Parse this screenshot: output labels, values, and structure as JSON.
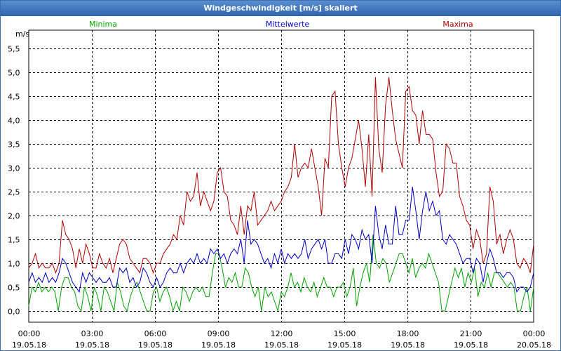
{
  "window": {
    "title": "Windgeschwindigkeit [m/s] skaliert"
  },
  "colors": {
    "minima": "#00a000",
    "mittelwerte": "#0000c0",
    "maxima": "#b00000",
    "grid": "#000000",
    "titlebar": "#3568b5"
  },
  "chart_data": {
    "type": "line",
    "title": "Windgeschwindigkeit [m/s] skaliert",
    "ylabel": "m/s",
    "ylim": [
      -0.2,
      5.9
    ],
    "yticks": [
      "0,0",
      "0,5",
      "1,0",
      "1,5",
      "2,0",
      "2,5",
      "3,0",
      "3,5",
      "4,0",
      "4,5",
      "5,0",
      "5,5"
    ],
    "xlim": [
      "19.05.18 00:00",
      "20.05.18 00:00"
    ],
    "xticks": [
      {
        "time": "00:00",
        "date": "19.05.18"
      },
      {
        "time": "03:00",
        "date": "19.05.18"
      },
      {
        "time": "06:00",
        "date": "19.05.18"
      },
      {
        "time": "09:00",
        "date": "19.05.18"
      },
      {
        "time": "12:00",
        "date": "19.05.18"
      },
      {
        "time": "15:00",
        "date": "19.05.18"
      },
      {
        "time": "18:00",
        "date": "19.05.18"
      },
      {
        "time": "21:00",
        "date": "19.05.18"
      },
      {
        "time": "00:00",
        "date": "20.05.18"
      }
    ],
    "grid": true,
    "legend": [
      "Minima",
      "Mittelwerte",
      "Maxima"
    ],
    "series": [
      {
        "name": "Minima",
        "color": "#00a000",
        "values": [
          0.1,
          0.5,
          0.4,
          0.6,
          0.4,
          0.5,
          0.4,
          0.5,
          0.4,
          0.0,
          0.5,
          0.7,
          0.7,
          0.5,
          0.4,
          0.1,
          0.0,
          0.5,
          0.3,
          0.0,
          0.5,
          0.3,
          0.0,
          0.5,
          0.4,
          0.2,
          0.0,
          0.6,
          0.4,
          0.1,
          0.0,
          0.3,
          0.5,
          0.6,
          0.4,
          0.2,
          0.0,
          0.0,
          0.4,
          0.5,
          0.2,
          0.4,
          0.5,
          0.3,
          0.0,
          0.2,
          0.0,
          0.5,
          0.4,
          0.2,
          0.4,
          0.5,
          0.4,
          0.5,
          0.3,
          0.3,
          0.8,
          1.2,
          1.2,
          0.9,
          0.5,
          0.7,
          0.6,
          0.8,
          0.5,
          0.5,
          0.9,
          0.8,
          0.5,
          0.3,
          0.5,
          0.0,
          0.5,
          0.3,
          0.4,
          0.2,
          0.0,
          0.4,
          0.3,
          0.5,
          0.8,
          0.5,
          0.6,
          0.4,
          0.7,
          0.5,
          0.4,
          0.6,
          0.3,
          0.5,
          0.7,
          0.5,
          0.5,
          0.3,
          0.5,
          0.5,
          0.6,
          0.3,
          0.5,
          0.9,
          0.1,
          0.5,
          0.8,
          1.0,
          0.6,
          1.6,
          1.0,
          0.9,
          1.1,
          1.0,
          0.6,
          0.8,
          1.0,
          1.2,
          1.2,
          1.0,
          0.8,
          1.1,
          0.7,
          0.9,
          1.0,
          0.9,
          1.2,
          1.0,
          0.8,
          0.6,
          0.0,
          0.0,
          0.3,
          0.6,
          0.9,
          0.7,
          0.9,
          0.5,
          0.8,
          0.6,
          0.9,
          0.3,
          0.6,
          0.5,
          0.8,
          0.5,
          0.8,
          0.8,
          0.7,
          0.6,
          0.5,
          0.6,
          0.5,
          0.0,
          0.0,
          0.3,
          0.5,
          0.0,
          0.5
        ]
      },
      {
        "name": "Mittelwerte",
        "color": "#0000c0",
        "values": [
          0.6,
          0.8,
          0.6,
          0.7,
          0.6,
          0.8,
          0.6,
          0.7,
          0.6,
          0.8,
          1.1,
          1.0,
          0.8,
          0.6,
          0.5,
          0.4,
          0.8,
          0.6,
          0.8,
          0.7,
          0.6,
          0.7,
          0.6,
          0.6,
          0.7,
          0.5,
          0.5,
          0.9,
          0.8,
          0.9,
          0.6,
          0.7,
          0.5,
          0.6,
          0.9,
          0.8,
          0.6,
          0.5,
          0.7,
          0.5,
          0.6,
          0.8,
          0.9,
          0.8,
          0.8,
          1.0,
          0.8,
          1.0,
          1.1,
          1.0,
          1.2,
          1.0,
          1.1,
          1.0,
          1.3,
          1.2,
          1.3,
          1.1,
          1.2,
          1.0,
          1.2,
          1.3,
          1.2,
          1.5,
          1.0,
          1.9,
          1.4,
          1.5,
          1.4,
          1.2,
          1.0,
          1.1,
          0.9,
          1.2,
          1.0,
          1.3,
          1.0,
          1.2,
          1.1,
          1.2,
          1.1,
          1.2,
          1.5,
          1.1,
          1.3,
          1.4,
          1.5,
          1.3,
          1.5,
          1.0,
          1.0,
          1.2,
          1.2,
          1.1,
          1.5,
          1.2,
          1.6,
          1.5,
          1.3,
          1.7,
          1.5,
          1.6,
          1.0,
          2.2,
          1.6,
          1.3,
          1.8,
          1.4,
          1.4,
          2.2,
          1.6,
          1.6,
          1.9,
          1.9,
          2.6,
          2.1,
          1.5,
          2.1,
          2.5,
          2.1,
          2.3,
          2.0,
          2.1,
          1.5,
          1.4,
          1.6,
          1.5,
          1.4,
          1.2,
          1.0,
          1.1,
          1.1,
          0.8,
          1.1,
          1.0,
          0.6,
          1.0,
          1.3,
          1.1,
          0.8,
          0.8,
          0.7,
          0.8,
          0.8,
          0.7,
          0.4,
          0.5,
          0.5,
          0.4,
          0.5,
          0.8
        ]
      },
      {
        "name": "Maxima",
        "color": "#b00000",
        "values": [
          0.9,
          1.0,
          1.2,
          0.9,
          1.0,
          0.9,
          0.9,
          1.0,
          0.8,
          1.0,
          1.9,
          1.6,
          1.5,
          1.3,
          0.9,
          1.3,
          1.0,
          1.4,
          1.2,
          0.9,
          0.9,
          1.2,
          1.0,
          0.9,
          1.1,
          0.8,
          1.1,
          1.4,
          1.5,
          1.4,
          1.1,
          1.0,
          0.9,
          0.8,
          1.1,
          1.1,
          1.0,
          0.8,
          1.0,
          1.0,
          1.2,
          1.3,
          1.4,
          1.6,
          1.5,
          2.0,
          1.8,
          2.5,
          2.3,
          2.4,
          2.9,
          2.2,
          2.5,
          2.3,
          2.1,
          2.3,
          2.9,
          3.0,
          2.5,
          2.4,
          1.9,
          1.8,
          1.6,
          2.2,
          1.6,
          2.2,
          2.1,
          2.5,
          1.8,
          1.9,
          2.0,
          2.1,
          2.3,
          2.1,
          2.2,
          2.3,
          2.5,
          2.6,
          2.8,
          3.5,
          2.8,
          3.0,
          3.1,
          3.0,
          3.4,
          3.0,
          2.6,
          2.0,
          3.2,
          3.0,
          4.5,
          4.6,
          3.5,
          3.0,
          2.6,
          3.0,
          3.2,
          3.6,
          4.0,
          3.4,
          2.6,
          3.7,
          2.4,
          4.9,
          3.4,
          2.9,
          4.3,
          4.9,
          4.2,
          3.6,
          3.3,
          3.0,
          4.6,
          4.7,
          4.2,
          4.1,
          3.5,
          4.2,
          3.7,
          3.7,
          3.6,
          2.9,
          2.4,
          2.5,
          3.5,
          3.4,
          3.1,
          3.1,
          2.4,
          2.2,
          1.9,
          1.8,
          1.3,
          1.7,
          1.5,
          1.0,
          1.2,
          2.6,
          2.3,
          1.4,
          1.6,
          1.2,
          1.5,
          1.7,
          1.5,
          1.0,
          0.9,
          1.1,
          1.0,
          0.8,
          1.4
        ]
      }
    ]
  }
}
